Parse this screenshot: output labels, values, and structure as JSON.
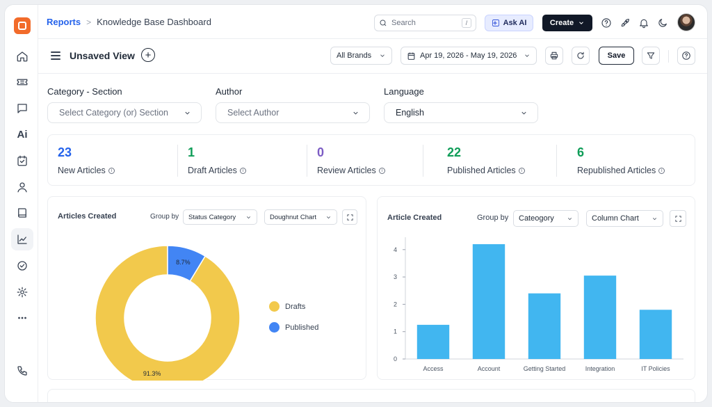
{
  "topbar": {
    "breadcrumb_root": "Reports",
    "breadcrumb_sep": ">",
    "breadcrumb_current": "Knowledge Base Dashboard",
    "search_placeholder": "Search",
    "search_shortcut": "/",
    "ask_ai_label": "Ask AI",
    "create_label": "Create"
  },
  "sidebar": {
    "items": [
      {
        "name": "home-icon"
      },
      {
        "name": "ticket-icon"
      },
      {
        "name": "chat-icon"
      },
      {
        "name": "ai-icon",
        "text": "Ai"
      },
      {
        "name": "task-icon"
      },
      {
        "name": "contacts-icon"
      },
      {
        "name": "knowledge-base-icon"
      },
      {
        "name": "reports-icon",
        "active": true
      },
      {
        "name": "check-circle-icon"
      },
      {
        "name": "settings-icon"
      },
      {
        "name": "more-icon"
      },
      {
        "name": "phone-icon"
      }
    ]
  },
  "view": {
    "title": "Unsaved View",
    "brand_filter": "All Brands",
    "date_range": "Apr 19, 2026 - May 19, 2026",
    "save_label": "Save"
  },
  "filters": {
    "category_label": "Category - Section",
    "category_placeholder": "Select Category (or) Section",
    "author_label": "Author",
    "author_placeholder": "Select Author",
    "language_label": "Language",
    "language_value": "English"
  },
  "kpis": [
    {
      "value": "23",
      "label": "New Articles",
      "color": "#2563eb"
    },
    {
      "value": "1",
      "label": "Draft Articles",
      "color": "#0f9d58"
    },
    {
      "value": "0",
      "label": "Review Articles",
      "color": "#7c5cc4"
    },
    {
      "value": "22",
      "label": "Published Articles",
      "color": "#0f9d58"
    },
    {
      "value": "6",
      "label": "Republished Articles",
      "color": "#0f9d58"
    }
  ],
  "donut_card": {
    "title": "Articles Created",
    "group_by_label": "Group by",
    "group_by_value": "Status Category",
    "chart_type_value": "Doughnut Chart"
  },
  "column_card": {
    "title": "Article Created",
    "group_by_label": "Group by",
    "group_by_value": "Cateogory",
    "chart_type_value": "Column Chart"
  },
  "chart_data": [
    {
      "type": "pie",
      "title": "Articles Created",
      "slices": [
        {
          "label": "Drafts",
          "value": 91.3,
          "display": "91.3%",
          "color": "#f2c94c"
        },
        {
          "label": "Published",
          "value": 8.7,
          "display": "8.7%",
          "color": "#4285f4"
        }
      ],
      "legend_position": "right"
    },
    {
      "type": "bar",
      "title": "Article Created",
      "categories": [
        "Access",
        "Account",
        "Getting Started",
        "Integration",
        "IT Policies"
      ],
      "values": [
        1.25,
        4.2,
        2.4,
        3.05,
        1.8
      ],
      "yticks": [
        0,
        1,
        2,
        3,
        4
      ],
      "ylim": [
        0,
        4.3
      ],
      "bar_color": "#41b6f0",
      "grid": false
    }
  ]
}
